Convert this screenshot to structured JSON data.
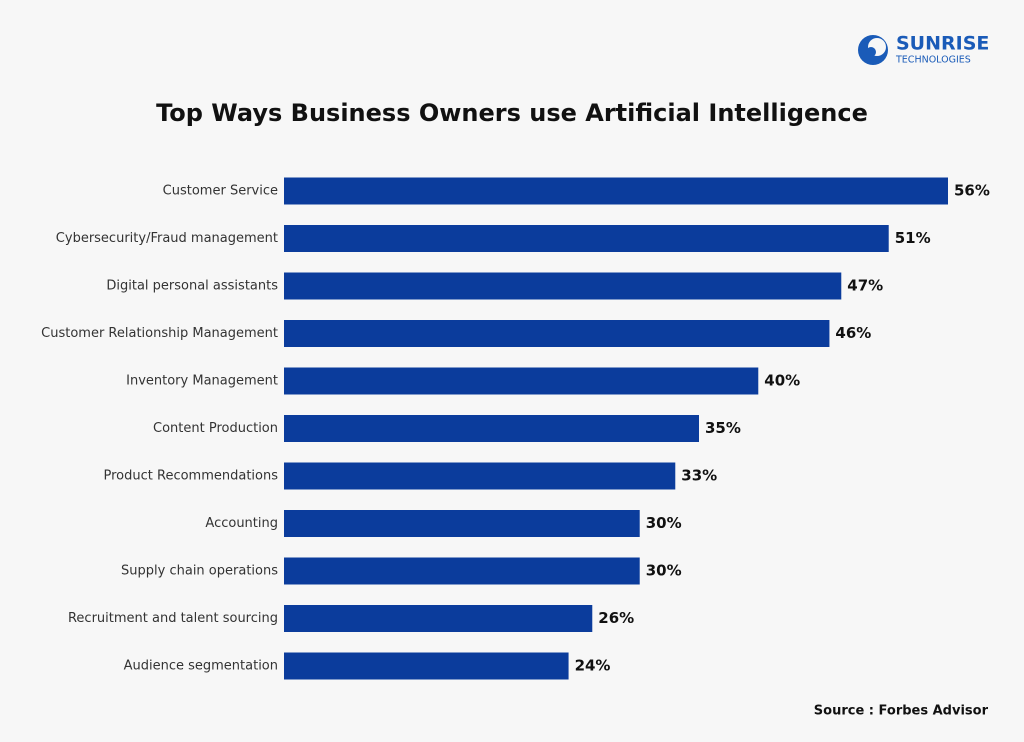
{
  "brand": {
    "name": "SUNRISE",
    "tagline": "TECHNOLOGIES"
  },
  "chart_data": {
    "type": "bar",
    "orientation": "horizontal",
    "title": "Top Ways Business Owners use Artificial Intelligence",
    "categories": [
      "Customer Service",
      "Cybersecurity/Fraud management",
      "Digital personal assistants",
      "Customer Relationship Management",
      "Inventory Management",
      "Content Production",
      "Product Recommendations",
      "Accounting",
      "Supply chain operations",
      "Recruitment and talent sourcing",
      "Audience  segmentation"
    ],
    "values": [
      56,
      51,
      47,
      46,
      40,
      35,
      33,
      30,
      30,
      26,
      24
    ],
    "value_labels": [
      "56%",
      "51%",
      "47%",
      "46%",
      "40%",
      "35%",
      "33%",
      "30%",
      "30%",
      "26%",
      "24%"
    ],
    "color": "#0b3c9c",
    "source": "Source : Forbes Advisor"
  }
}
